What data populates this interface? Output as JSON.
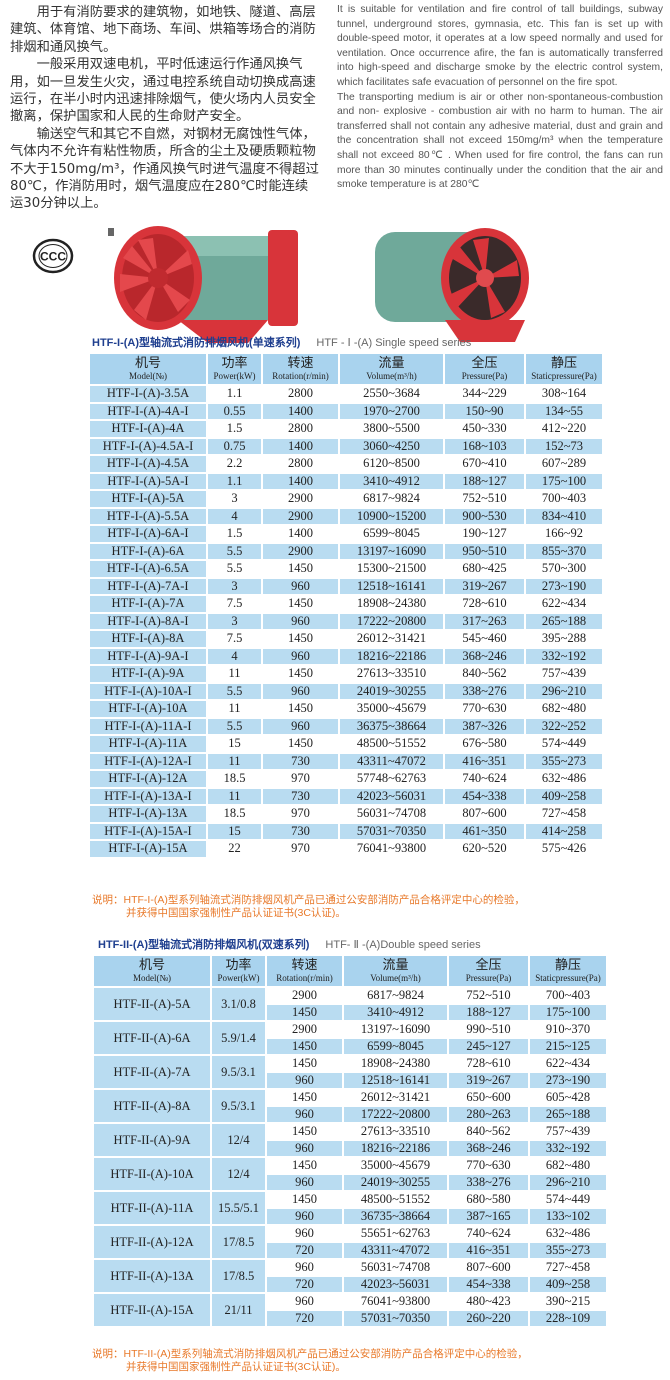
{
  "intro": {
    "cn_paragraphs": [
      "用于有消防要求的建筑物，如地铁、隧道、高层建筑、体育馆、地下商场、车间、烘箱等场合的消防排烟和通风换气。",
      "一般采用双速电机，平时低速运行作通风换气用，如一旦发生火灾，通过电控系统自动切换成高速运行，在半小时内迅速排除烟气，使火场内人员安全撤离，保护国家和人民的生命财产安全。",
      "输送空气和其它不自燃，对钢材无腐蚀性气体，气体内不允许有粘性物质，所含的尘土及硬质颗粒物不大于150mg/m³，作通风换气时进气温度不得超过80℃，作消防用时，烟气温度应在280℃时能连续运30分钟以上。"
    ],
    "en_paragraphs": [
      "It is suitable for ventilation and fire control of tall buildings, subway tunnel, underground stores, gymnasia, etc. This fan is set up with double-speed motor, it operates at a low speed normally and used for ventilation. Once occurrence afire, the fan is automatically transferred into high-speed and discharge smoke by the electric control system, which facilitates safe evacuation of personnel on the fire spot.",
      "The transporting medium is air or other non-spontaneous-combustion and non- explosive - combustion air with no harm to human. The air transferred shall not contain any adhesive material, dust and grain and the concentration shall not exceed 150mg/m³ when the temperature shall not exceed 80℃ . When used for fire control, the fans can run more than 30 minutes continually under the condition that the air and smoke temperature is at 280℃"
    ]
  },
  "logo": {
    "text": "CCC"
  },
  "colors": {
    "header_blue": "#a9d3ee",
    "row_blue": "#b9dcf1",
    "title_blue": "#1f3f8f",
    "note_orange": "#e8792a",
    "fan_red": "#d8343a",
    "fan_green": "#6fa99a"
  },
  "headers": [
    {
      "cn": "机号",
      "en": "Model(№)"
    },
    {
      "cn": "功率",
      "en": "Power(kW)"
    },
    {
      "cn": "转速",
      "en": "Rotation(r/min)"
    },
    {
      "cn": "流量",
      "en": "Volume(m³/h)"
    },
    {
      "cn": "全压",
      "en": "Pressure(Pa)"
    },
    {
      "cn": "静压",
      "en": "Staticpressure(Pa)"
    }
  ],
  "single": {
    "title_cn": "HTF-I-(A)型轴流式消防排烟风机(单速系列)",
    "title_en": "HTF - Ⅰ -(A) Single speed series",
    "rows": [
      [
        "HTF-I-(A)-3.5A",
        "1.1",
        "2800",
        "2550~3684",
        "344~229",
        "308~164"
      ],
      [
        "HTF-I-(A)-4A-I",
        "0.55",
        "1400",
        "1970~2700",
        "150~90",
        "134~55"
      ],
      [
        "HTF-I-(A)-4A",
        "1.5",
        "2800",
        "3800~5500",
        "450~330",
        "412~220"
      ],
      [
        "HTF-I-(A)-4.5A-I",
        "0.75",
        "1400",
        "3060~4250",
        "168~103",
        "152~73"
      ],
      [
        "HTF-I-(A)-4.5A",
        "2.2",
        "2800",
        "6120~8500",
        "670~410",
        "607~289"
      ],
      [
        "HTF-I-(A)-5A-I",
        "1.1",
        "1400",
        "3410~4912",
        "188~127",
        "175~100"
      ],
      [
        "HTF-I-(A)-5A",
        "3",
        "2900",
        "6817~9824",
        "752~510",
        "700~403"
      ],
      [
        "HTF-I-(A)-5.5A",
        "4",
        "2900",
        "10900~15200",
        "900~530",
        "834~410"
      ],
      [
        "HTF-I-(A)-6A-I",
        "1.5",
        "1400",
        "6599~8045",
        "190~127",
        "166~92"
      ],
      [
        "HTF-I-(A)-6A",
        "5.5",
        "2900",
        "13197~16090",
        "950~510",
        "855~370"
      ],
      [
        "HTF-I-(A)-6.5A",
        "5.5",
        "1450",
        "15300~21500",
        "680~425",
        "570~300"
      ],
      [
        "HTF-I-(A)-7A-I",
        "3",
        "960",
        "12518~16141",
        "319~267",
        "273~190"
      ],
      [
        "HTF-I-(A)-7A",
        "7.5",
        "1450",
        "18908~24380",
        "728~610",
        "622~434"
      ],
      [
        "HTF-I-(A)-8A-I",
        "3",
        "960",
        "17222~20800",
        "317~263",
        "265~188"
      ],
      [
        "HTF-I-(A)-8A",
        "7.5",
        "1450",
        "26012~31421",
        "545~460",
        "395~288"
      ],
      [
        "HTF-I-(A)-9A-I",
        "4",
        "960",
        "18216~22186",
        "368~246",
        "332~192"
      ],
      [
        "HTF-I-(A)-9A",
        "11",
        "1450",
        "27613~33510",
        "840~562",
        "757~439"
      ],
      [
        "HTF-I-(A)-10A-I",
        "5.5",
        "960",
        "24019~30255",
        "338~276",
        "296~210"
      ],
      [
        "HTF-I-(A)-10A",
        "11",
        "1450",
        "35000~45679",
        "770~630",
        "682~480"
      ],
      [
        "HTF-I-(A)-11A-I",
        "5.5",
        "960",
        "36375~38664",
        "387~326",
        "322~252"
      ],
      [
        "HTF-I-(A)-11A",
        "15",
        "1450",
        "48500~51552",
        "676~580",
        "574~449"
      ],
      [
        "HTF-I-(A)-12A-I",
        "11",
        "730",
        "43311~47072",
        "416~351",
        "355~273"
      ],
      [
        "HTF-I-(A)-12A",
        "18.5",
        "970",
        "57748~62763",
        "740~624",
        "632~486"
      ],
      [
        "HTF-I-(A)-13A-I",
        "11",
        "730",
        "42023~56031",
        "454~338",
        "409~258"
      ],
      [
        "HTF-I-(A)-13A",
        "18.5",
        "970",
        "56031~74708",
        "807~600",
        "727~458"
      ],
      [
        "HTF-I-(A)-15A-I",
        "15",
        "730",
        "57031~70350",
        "461~350",
        "414~258"
      ],
      [
        "HTF-I-(A)-15A",
        "22",
        "970",
        "76041~93800",
        "620~520",
        "575~426"
      ]
    ],
    "note_line1": "说明：HTF-I-(A)型系列轴流式消防排烟风机产品已通过公安部消防产品合格评定中心的检验，",
    "note_line2": "并获得中国国家强制性产品认证证书(3C认证)。"
  },
  "double": {
    "title_cn": "HTF-II-(A)型轴流式消防排烟风机(双速系列)",
    "title_en": "HTF- Ⅱ -(A)Double speed series",
    "groups": [
      {
        "model": "HTF-II-(A)-5A",
        "power": "3.1/0.8",
        "sub": [
          [
            "2900",
            "6817~9824",
            "752~510",
            "700~403"
          ],
          [
            "1450",
            "3410~4912",
            "188~127",
            "175~100"
          ]
        ]
      },
      {
        "model": "HTF-II-(A)-6A",
        "power": "5.9/1.4",
        "sub": [
          [
            "2900",
            "13197~16090",
            "990~510",
            "910~370"
          ],
          [
            "1450",
            "6599~8045",
            "245~127",
            "215~125"
          ]
        ]
      },
      {
        "model": "HTF-II-(A)-7A",
        "power": "9.5/3.1",
        "sub": [
          [
            "1450",
            "18908~24380",
            "728~610",
            "622~434"
          ],
          [
            "960",
            "12518~16141",
            "319~267",
            "273~190"
          ]
        ]
      },
      {
        "model": "HTF-II-(A)-8A",
        "power": "9.5/3.1",
        "sub": [
          [
            "1450",
            "26012~31421",
            "650~600",
            "605~428"
          ],
          [
            "960",
            "17222~20800",
            "280~263",
            "265~188"
          ]
        ]
      },
      {
        "model": "HTF-II-(A)-9A",
        "power": "12/4",
        "sub": [
          [
            "1450",
            "27613~33510",
            "840~562",
            "757~439"
          ],
          [
            "960",
            "18216~22186",
            "368~246",
            "332~192"
          ]
        ]
      },
      {
        "model": "HTF-II-(A)-10A",
        "power": "12/4",
        "sub": [
          [
            "1450",
            "35000~45679",
            "770~630",
            "682~480"
          ],
          [
            "960",
            "24019~30255",
            "338~276",
            "296~210"
          ]
        ]
      },
      {
        "model": "HTF-II-(A)-11A",
        "power": "15.5/5.1",
        "sub": [
          [
            "1450",
            "48500~51552",
            "680~580",
            "574~449"
          ],
          [
            "960",
            "36735~38664",
            "387~165",
            "133~102"
          ]
        ]
      },
      {
        "model": "HTF-II-(A)-12A",
        "power": "17/8.5",
        "sub": [
          [
            "960",
            "55651~62763",
            "740~624",
            "632~486"
          ],
          [
            "720",
            "43311~47072",
            "416~351",
            "355~273"
          ]
        ]
      },
      {
        "model": "HTF-II-(A)-13A",
        "power": "17/8.5",
        "sub": [
          [
            "960",
            "56031~74708",
            "807~600",
            "727~458"
          ],
          [
            "720",
            "42023~56031",
            "454~338",
            "409~258"
          ]
        ]
      },
      {
        "model": "HTF-II-(A)-15A",
        "power": "21/11",
        "sub": [
          [
            "960",
            "76041~93800",
            "480~423",
            "390~215"
          ],
          [
            "720",
            "57031~70350",
            "260~220",
            "228~109"
          ]
        ]
      }
    ],
    "note_line1": "说明：HTF-II-(A)型系列轴流式消防排烟风机产品已通过公安部消防产品合格评定中心的检验，",
    "note_line2": "并获得中国国家强制性产品认证证书(3C认证)。"
  }
}
